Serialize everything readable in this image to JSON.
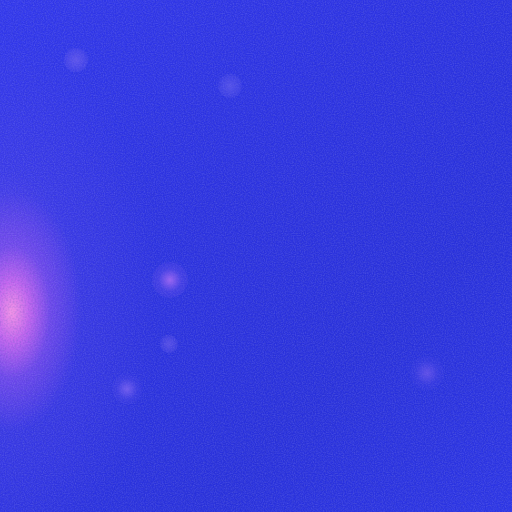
{
  "scene": {
    "subject": "",
    "colors": {
      "background": "#2a32e6",
      "glow": "#ff96e6",
      "spot": "#8a6af0"
    }
  }
}
